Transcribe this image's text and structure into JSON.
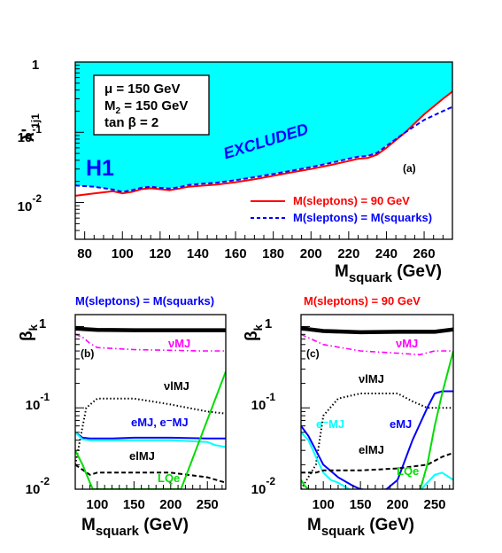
{
  "chart_data": [
    {
      "id": "a",
      "type": "area",
      "panel_label": "(a)",
      "logo": "H1",
      "region_label": "EXCLUDED",
      "params": [
        "μ = 150 GeV",
        "M2 = 150 GeV",
        "tan β = 2"
      ],
      "ylabel": "λ'1j1",
      "xlabel": "M squark (GeV)",
      "x_ticks": [
        "80",
        "100",
        "120",
        "140",
        "160",
        "180",
        "200",
        "220",
        "240",
        "260"
      ],
      "xlim": [
        75,
        275
      ],
      "ylim": [
        0.003,
        1
      ],
      "yscale": "log",
      "y_tick_labels": [
        "1",
        "10-1",
        "10-2"
      ],
      "legend": {
        "placement": "bottom-right"
      },
      "series": [
        {
          "name": "M(sleptons) = 90 GeV",
          "color": "#ff0000",
          "style": "solid",
          "x": [
            75,
            85,
            95,
            100,
            105,
            110,
            115,
            120,
            125,
            130,
            135,
            140,
            150,
            160,
            170,
            180,
            190,
            200,
            210,
            220,
            225,
            230,
            235,
            240,
            250,
            260,
            270,
            275
          ],
          "y": [
            0.0125,
            0.0135,
            0.0145,
            0.0135,
            0.0142,
            0.0155,
            0.016,
            0.0155,
            0.015,
            0.0158,
            0.0168,
            0.0172,
            0.018,
            0.0195,
            0.0215,
            0.024,
            0.027,
            0.03,
            0.034,
            0.039,
            0.042,
            0.043,
            0.048,
            0.06,
            0.1,
            0.18,
            0.3,
            0.38
          ]
        },
        {
          "name": "M(sleptons) = M(squarks)",
          "color": "#0000ff",
          "style": "dashed",
          "x": [
            75,
            85,
            95,
            100,
            105,
            110,
            115,
            120,
            125,
            130,
            135,
            140,
            150,
            160,
            170,
            180,
            190,
            200,
            210,
            220,
            225,
            230,
            235,
            240,
            250,
            260,
            270,
            275
          ],
          "y": [
            0.0175,
            0.0168,
            0.0153,
            0.0142,
            0.015,
            0.0162,
            0.0168,
            0.0162,
            0.0158,
            0.0165,
            0.0178,
            0.0183,
            0.0192,
            0.0208,
            0.023,
            0.0255,
            0.0285,
            0.032,
            0.0365,
            0.042,
            0.045,
            0.046,
            0.051,
            0.064,
            0.1,
            0.15,
            0.2,
            0.23
          ]
        }
      ]
    },
    {
      "id": "b",
      "type": "line",
      "title": "M(sleptons) = M(squarks)",
      "title_color": "#0000ff",
      "panel_label": "(b)",
      "ylabel": "βk",
      "xlabel": "M squark (GeV)",
      "x_ticks": [
        "100",
        "150",
        "200",
        "250"
      ],
      "xlim": [
        70,
        275
      ],
      "ylim": [
        0.01,
        1.4
      ],
      "yscale": "log",
      "y_tick_labels": [
        "1",
        "10-1",
        "10-2"
      ],
      "series": [
        {
          "name": "",
          "color": "#000000",
          "style": "thick",
          "x": [
            70,
            80,
            100,
            150,
            200,
            250,
            275
          ],
          "y": [
            0.95,
            0.93,
            0.91,
            0.9,
            0.9,
            0.9,
            0.9
          ]
        },
        {
          "name": "νMJ",
          "color": "#ff00ff",
          "style": "dashdot",
          "x": [
            70,
            80,
            90,
            100,
            150,
            200,
            240,
            275
          ],
          "y": [
            0.8,
            0.74,
            0.62,
            0.55,
            0.52,
            0.51,
            0.5,
            0.5
          ]
        },
        {
          "name": "νlMJ",
          "color": "#000000",
          "style": "dotted",
          "x": [
            70,
            85,
            100,
            150,
            200,
            250,
            275
          ],
          "y": [
            0.02,
            0.1,
            0.13,
            0.13,
            0.11,
            0.09,
            0.085
          ]
        },
        {
          "name": "eMJ",
          "color": "#0000ff",
          "style": "solid",
          "x": [
            70,
            80,
            90,
            100,
            120,
            150,
            200,
            250,
            275
          ],
          "y": [
            0.05,
            0.043,
            0.042,
            0.042,
            0.042,
            0.043,
            0.043,
            0.042,
            0.042
          ]
        },
        {
          "name": "e⁻MJ",
          "color": "#00ffff",
          "style": "solid",
          "x": [
            70,
            80,
            90,
            100,
            150,
            200,
            250,
            260,
            275
          ],
          "y": [
            0.05,
            0.041,
            0.04,
            0.04,
            0.04,
            0.04,
            0.038,
            0.035,
            0.033
          ]
        },
        {
          "name": "elMJ",
          "color": "#000000",
          "style": "dashed",
          "x": [
            70,
            90,
            100,
            150,
            200,
            250,
            275
          ],
          "y": [
            0.02,
            0.015,
            0.016,
            0.016,
            0.016,
            0.014,
            0.012
          ]
        },
        {
          "name": "LQe",
          "color": "#00dd00",
          "style": "solid",
          "x": [
            70,
            80,
            90,
            94,
            214,
            275
          ],
          "y": [
            0.03,
            0.02,
            0.012,
            0.01,
            0.01,
            0.28
          ]
        }
      ],
      "labels": [
        "νMJ",
        "νlMJ",
        "eMJ, e⁻MJ",
        "elMJ",
        "LQe"
      ]
    },
    {
      "id": "c",
      "type": "line",
      "title": "M(sleptons) = 90 GeV",
      "title_color": "#ff0000",
      "panel_label": "(c)",
      "ylabel": "βk",
      "xlabel": "M squark (GeV)",
      "x_ticks": [
        "100",
        "150",
        "200",
        "250"
      ],
      "xlim": [
        70,
        275
      ],
      "ylim": [
        0.01,
        1.4
      ],
      "yscale": "log",
      "y_tick_labels": [
        "1",
        "10-1",
        "10-2"
      ],
      "series": [
        {
          "name": "",
          "color": "#000000",
          "style": "thick",
          "x": [
            70,
            100,
            150,
            200,
            250,
            275
          ],
          "y": [
            0.95,
            0.88,
            0.85,
            0.86,
            0.86,
            0.92
          ]
        },
        {
          "name": "νMJ",
          "color": "#ff00ff",
          "style": "dashdot",
          "x": [
            70,
            100,
            150,
            200,
            230,
            250,
            275
          ],
          "y": [
            0.8,
            0.6,
            0.5,
            0.47,
            0.45,
            0.5,
            0.5
          ]
        },
        {
          "name": "νlMJ",
          "color": "#000000",
          "style": "dotted",
          "x": [
            70,
            90,
            100,
            120,
            150,
            200,
            220,
            240,
            275
          ],
          "y": [
            0.01,
            0.02,
            0.08,
            0.13,
            0.15,
            0.15,
            0.12,
            0.1,
            0.1
          ]
        },
        {
          "name": "eMJ",
          "color": "#0000ff",
          "style": "solid",
          "x": [
            70,
            80,
            90,
            100,
            120,
            140,
            150,
            170,
            185,
            200,
            220,
            240,
            250,
            260,
            275
          ],
          "y": [
            0.06,
            0.045,
            0.03,
            0.02,
            0.014,
            0.011,
            0.01,
            0.0095,
            0.01,
            0.013,
            0.04,
            0.1,
            0.15,
            0.16,
            0.16
          ]
        },
        {
          "name": "e⁻MJ",
          "color": "#00ffff",
          "style": "solid",
          "x": [
            70,
            80,
            90,
            100,
            110,
            120,
            135,
            140
          ],
          "y": [
            0.05,
            0.04,
            0.025,
            0.016,
            0.013,
            0.012,
            0.01,
            0.0095
          ]
        },
        {
          "name": "",
          "color": "#00ffff",
          "style": "solid",
          "x": [
            220,
            230,
            240,
            250,
            260,
            275
          ],
          "y": [
            0.009,
            0.0095,
            0.012,
            0.015,
            0.016,
            0.013
          ]
        },
        {
          "name": "elMJ",
          "color": "#000000",
          "style": "dashed",
          "x": [
            70,
            90,
            100,
            150,
            200,
            220,
            240,
            260,
            275
          ],
          "y": [
            0.016,
            0.016,
            0.017,
            0.017,
            0.018,
            0.019,
            0.02,
            0.025,
            0.028
          ]
        },
        {
          "name": "LQe",
          "color": "#00dd00",
          "style": "solid",
          "x": [
            70,
            75,
            80,
            85,
            90,
            230,
            240,
            250,
            260,
            275
          ],
          "y": [
            0.013,
            0.011,
            0.01,
            0.0095,
            0.0095,
            0.0095,
            0.02,
            0.06,
            0.15,
            0.5
          ]
        }
      ],
      "labels": [
        "νMJ",
        "νlMJ",
        "e⁻MJ",
        "eMJ",
        "elMJ",
        "LQe"
      ]
    }
  ]
}
